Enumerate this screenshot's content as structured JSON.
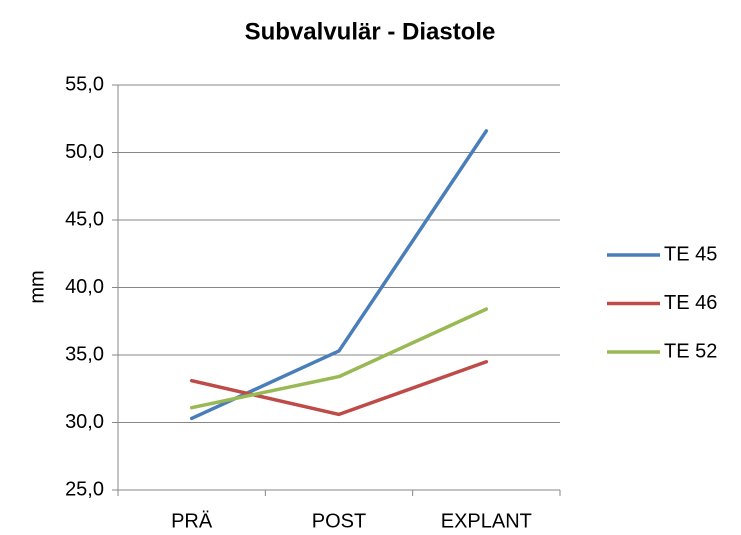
{
  "chart_data": {
    "type": "line",
    "title": "Subvalvulär - Diastole",
    "y_label": "mm",
    "categories": [
      "PRÄ",
      "POST",
      "EXPLANT"
    ],
    "series": [
      {
        "name": "TE 45",
        "color": "#4a7ebb",
        "values": [
          30.3,
          35.3,
          51.6
        ]
      },
      {
        "name": "TE 46",
        "color": "#be4b48",
        "values": [
          33.1,
          30.6,
          34.5
        ]
      },
      {
        "name": "TE 52",
        "color": "#98b954",
        "values": [
          31.1,
          33.4,
          38.4
        ]
      }
    ],
    "ylim": [
      25,
      55
    ],
    "yticks": [
      {
        "value": 25,
        "label": "25,0"
      },
      {
        "value": 30,
        "label": "30,0"
      },
      {
        "value": 35,
        "label": "35,0"
      },
      {
        "value": 40,
        "label": "40,0"
      },
      {
        "value": 45,
        "label": "45,0"
      },
      {
        "value": 50,
        "label": "50,0"
      },
      {
        "value": 55,
        "label": "55,0"
      }
    ],
    "grid": true,
    "legend": "right"
  }
}
